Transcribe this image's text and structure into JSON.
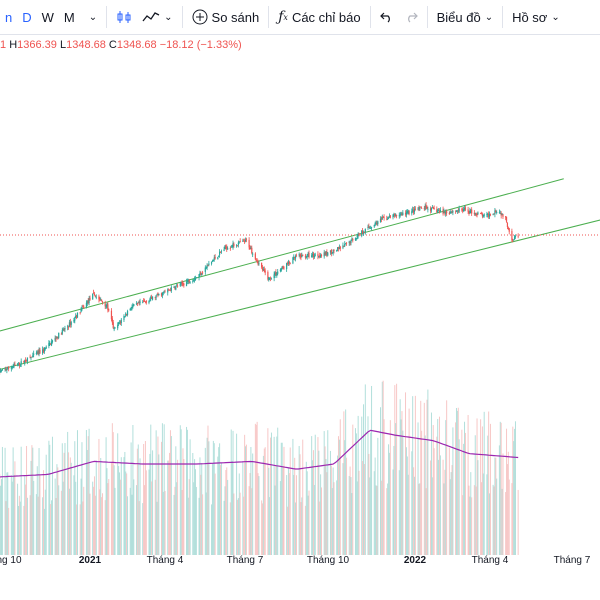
{
  "toolbar": {
    "interval_partial": "n",
    "interval_d": "D",
    "interval_w": "W",
    "interval_m": "M",
    "compare_label": "So sánh",
    "indicators_label": "Các chỉ báo",
    "chart_label": "Biểu đồ",
    "profile_label": "Hồ sơ",
    "icons": [
      "candlestick-icon",
      "line-chart-icon",
      "plus-circle-icon",
      "fx-icon",
      "undo-icon",
      "redo-icon"
    ]
  },
  "ohlc": {
    "open_partial": "1",
    "h_key": "H",
    "h_val": "1366.39",
    "l_key": "L",
    "l_val": "1348.68",
    "c_key": "C",
    "c_val": "1348.68",
    "change": "−18.12 (−1.33%)"
  },
  "colors": {
    "up": "#26a69a",
    "down": "#ef5350",
    "channel": "#4caf50",
    "volume_ma": "#9c27b0",
    "price_line": "#ef5350"
  },
  "chart_data": {
    "type": "candlestick",
    "title": "",
    "last_close": 1348.68,
    "x_ticks": [
      "ng 10",
      "2021",
      "Tháng 4",
      "Tháng 7",
      "Tháng 10",
      "2022",
      "Tháng 4",
      "Tháng 7"
    ],
    "bold_ticks": [
      "2021",
      "2022"
    ],
    "price_path": [
      [
        "2020-09-20",
        1040
      ],
      [
        "2020-10-15",
        1060
      ],
      [
        "2020-11-10",
        1090
      ],
      [
        "2020-12-10",
        1150
      ],
      [
        "2021-01-05",
        1215
      ],
      [
        "2021-01-20",
        1190
      ],
      [
        "2021-01-28",
        1135
      ],
      [
        "2021-02-15",
        1185
      ],
      [
        "2021-03-10",
        1205
      ],
      [
        "2021-04-05",
        1230
      ],
      [
        "2021-05-01",
        1255
      ],
      [
        "2021-06-01",
        1320
      ],
      [
        "2021-06-25",
        1335
      ],
      [
        "2021-07-10",
        1280
      ],
      [
        "2021-07-20",
        1250
      ],
      [
        "2021-08-20",
        1300
      ],
      [
        "2021-09-20",
        1305
      ],
      [
        "2021-10-10",
        1320
      ],
      [
        "2021-11-01",
        1355
      ],
      [
        "2021-11-25",
        1385
      ],
      [
        "2021-12-15",
        1395
      ],
      [
        "2022-01-10",
        1410
      ],
      [
        "2022-02-01",
        1400
      ],
      [
        "2022-02-25",
        1405
      ],
      [
        "2022-03-20",
        1390
      ],
      [
        "2022-04-01",
        1405
      ],
      [
        "2022-04-10",
        1390
      ],
      [
        "2022-04-18",
        1340
      ],
      [
        "2022-04-25",
        1350
      ]
    ],
    "volume_ma_path": [
      [
        "2020-09-20",
        600
      ],
      [
        "2020-11-15",
        620
      ],
      [
        "2021-01-05",
        720
      ],
      [
        "2021-03-01",
        700
      ],
      [
        "2021-05-01",
        700
      ],
      [
        "2021-07-01",
        720
      ],
      [
        "2021-08-20",
        660
      ],
      [
        "2021-10-01",
        700
      ],
      [
        "2021-11-10",
        960
      ],
      [
        "2021-12-10",
        920
      ],
      [
        "2022-01-20",
        880
      ],
      [
        "2022-03-01",
        780
      ],
      [
        "2022-04-25",
        750
      ]
    ],
    "channel_upper": [
      [
        "2020-08-20",
        1115
      ],
      [
        "2022-06-15",
        1475
      ]
    ],
    "channel_lower": [
      [
        "2020-08-20",
        1030
      ],
      [
        "2022-08-20",
        1395
      ]
    ]
  }
}
